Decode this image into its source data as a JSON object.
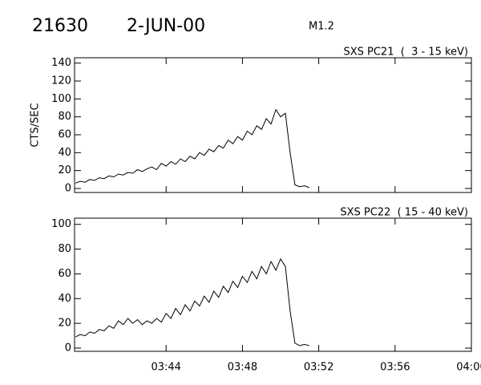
{
  "header": {
    "event": "21630",
    "date": "2-JUN-00",
    "class": "M1.2"
  },
  "chart_data": [
    {
      "type": "line",
      "title": "SXS PC21  (  3 - 15 keV)",
      "y_label": "CTS/SEC",
      "color": "#000000",
      "x": [
        219.25,
        219.5,
        219.75,
        220,
        220.25,
        220.5,
        220.75,
        221,
        221.25,
        221.5,
        221.75,
        222,
        222.25,
        222.5,
        222.75,
        223,
        223.25,
        223.5,
        223.75,
        224,
        224.25,
        224.5,
        224.75,
        225,
        225.25,
        225.5,
        225.75,
        226,
        226.25,
        226.5,
        226.75,
        227,
        227.25,
        227.5,
        227.75,
        228,
        228.25,
        228.5,
        228.75,
        229,
        229.25,
        229.5,
        229.75,
        230,
        230.25,
        230.5,
        230.75,
        231,
        231.25,
        231.5
      ],
      "values": [
        6,
        8,
        7,
        10,
        9,
        12,
        11,
        14,
        13,
        16,
        15,
        18,
        17,
        21,
        19,
        22,
        24,
        21,
        28,
        25,
        30,
        27,
        33,
        30,
        36,
        33,
        40,
        37,
        44,
        41,
        48,
        45,
        54,
        50,
        58,
        54,
        64,
        60,
        70,
        66,
        78,
        72,
        88,
        80,
        84,
        40,
        4,
        2,
        3,
        1
      ],
      "xlim": [
        219.2,
        240
      ],
      "xticks": [
        224,
        228,
        232,
        236,
        240
      ],
      "ylim": [
        -4.5,
        146
      ],
      "yticks": [
        0,
        20,
        40,
        60,
        80,
        100,
        120,
        140
      ]
    },
    {
      "type": "line",
      "title": "SXS PC22  ( 15 - 40 keV)",
      "color": "#000000",
      "x": [
        219.25,
        219.5,
        219.75,
        220,
        220.25,
        220.5,
        220.75,
        221,
        221.25,
        221.5,
        221.75,
        222,
        222.25,
        222.5,
        222.75,
        223,
        223.25,
        223.5,
        223.75,
        224,
        224.25,
        224.5,
        224.75,
        225,
        225.25,
        225.5,
        225.75,
        226,
        226.25,
        226.5,
        226.75,
        227,
        227.25,
        227.5,
        227.75,
        228,
        228.25,
        228.5,
        228.75,
        229,
        229.25,
        229.5,
        229.75,
        230,
        230.25,
        230.5,
        230.75,
        231,
        231.25,
        231.5
      ],
      "values": [
        9,
        11,
        10,
        13,
        12,
        15,
        14,
        18,
        16,
        22,
        19,
        24,
        20,
        23,
        19,
        22,
        20,
        24,
        21,
        28,
        24,
        32,
        27,
        35,
        30,
        38,
        34,
        42,
        37,
        46,
        41,
        50,
        45,
        54,
        49,
        58,
        53,
        62,
        56,
        66,
        60,
        70,
        63,
        72,
        66,
        30,
        4,
        2,
        3,
        2
      ],
      "xlim": [
        219.2,
        240
      ],
      "xticks": [
        {
          "value": 224,
          "label": "03:44"
        },
        {
          "value": 228,
          "label": "03:48"
        },
        {
          "value": 232,
          "label": "03:52"
        },
        {
          "value": 236,
          "label": "03:56"
        },
        {
          "value": 240,
          "label": "04:00"
        }
      ],
      "ylim": [
        -2.6,
        105
      ],
      "yticks": [
        0,
        20,
        40,
        60,
        80,
        100
      ]
    }
  ]
}
